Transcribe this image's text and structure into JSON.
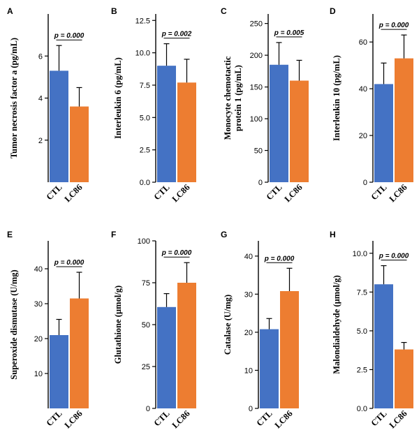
{
  "colors": {
    "CTL": "#4472c4",
    "LC86": "#ed7d31",
    "axis": "#000000"
  },
  "chart_data": [
    {
      "type": "bar",
      "panel": "A",
      "ylabel": "Tumor necrosis factor a (pg/mL)",
      "categories": [
        "CTL",
        "LC86"
      ],
      "values": [
        5.3,
        3.6
      ],
      "errors": [
        1.2,
        0.9
      ],
      "ylim": [
        0,
        8
      ],
      "yticks": [
        2,
        4,
        6
      ],
      "ytick_labels": [
        "2",
        "4",
        "6"
      ],
      "p_value": "p = 0.000"
    },
    {
      "type": "bar",
      "panel": "B",
      "ylabel": "Interleukin 6 (pg/mL)",
      "categories": [
        "CTL",
        "LC86"
      ],
      "values": [
        9.0,
        7.7
      ],
      "errors": [
        1.7,
        1.8
      ],
      "ylim": [
        0,
        13
      ],
      "yticks": [
        0,
        2.5,
        5,
        7.5,
        10,
        12.5
      ],
      "ytick_labels": [
        "0.0",
        "2.5",
        "5.0",
        "7.5",
        "10.0",
        "12.5"
      ],
      "p_value": "p = 0.002"
    },
    {
      "type": "bar",
      "panel": "C",
      "ylabel": "Monocyte chemotactic protein 1 (pg/mL)",
      "ylabel_lines": [
        "Monocyte chemotactic",
        "protein 1 (pg/mL)"
      ],
      "categories": [
        "CTL",
        "LC86"
      ],
      "values": [
        185,
        160
      ],
      "errors": [
        35,
        32
      ],
      "ylim": [
        0,
        265
      ],
      "yticks": [
        0,
        50,
        100,
        150,
        200,
        250
      ],
      "ytick_labels": [
        "0",
        "50",
        "100",
        "150",
        "200",
        "250"
      ],
      "p_value": "p = 0.005"
    },
    {
      "type": "bar",
      "panel": "D",
      "ylabel": "Interleukin 10 (pg/mL)",
      "categories": [
        "CTL",
        "LC86"
      ],
      "values": [
        42,
        53
      ],
      "errors": [
        9,
        10
      ],
      "ylim": [
        0,
        72
      ],
      "yticks": [
        0,
        20,
        40,
        60
      ],
      "ytick_labels": [
        "0",
        "20",
        "40",
        "60"
      ],
      "p_value": "p = 0.000"
    },
    {
      "type": "bar",
      "panel": "E",
      "ylabel": "Superoxide dismutase (U/mg)",
      "categories": [
        "CTL",
        "LC86"
      ],
      "values": [
        21,
        31.5
      ],
      "errors": [
        4.5,
        7.5
      ],
      "ylim": [
        0,
        48
      ],
      "yticks": [
        10,
        20,
        30,
        40
      ],
      "ytick_labels": [
        "10",
        "20",
        "30",
        "40"
      ],
      "p_value": "p = 0.000"
    },
    {
      "type": "bar",
      "panel": "F",
      "ylabel": "Glutathione (µmol/g)",
      "categories": [
        "CTL",
        "LC86"
      ],
      "values": [
        60.5,
        75
      ],
      "errors": [
        8,
        12
      ],
      "ylim": [
        0,
        100
      ],
      "yticks": [
        0,
        25,
        50,
        75,
        100
      ],
      "ytick_labels": [
        "0",
        "25",
        "50",
        "75",
        "100"
      ],
      "p_value": "p = 0.000"
    },
    {
      "type": "bar",
      "panel": "G",
      "ylabel": "Catalase (U/mg)",
      "categories": [
        "CTL",
        "LC86"
      ],
      "values": [
        20.8,
        30.8
      ],
      "errors": [
        2.8,
        6
      ],
      "ylim": [
        0,
        44
      ],
      "yticks": [
        0,
        10,
        20,
        30,
        40
      ],
      "ytick_labels": [
        "0",
        "10",
        "20",
        "30",
        "40"
      ],
      "p_value": "p = 0.000"
    },
    {
      "type": "bar",
      "panel": "H",
      "ylabel": "Malondialdehyde (µmol/g)",
      "categories": [
        "CTL",
        "LC86"
      ],
      "values": [
        8.0,
        3.8
      ],
      "errors": [
        1.2,
        0.45
      ],
      "ylim": [
        0,
        10.8
      ],
      "yticks": [
        0,
        2.5,
        5,
        7.5,
        10
      ],
      "ytick_labels": [
        "0.0",
        "2.5",
        "5.0",
        "7.5",
        "10.0"
      ],
      "p_value": "p = 0.000"
    }
  ]
}
